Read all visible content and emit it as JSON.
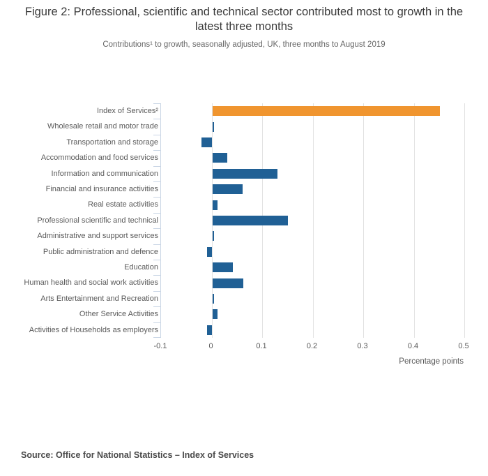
{
  "chart_data": {
    "type": "bar",
    "orientation": "horizontal",
    "title": "Figure 2: Professional, scientific and technical sector contributed most to growth in the latest three months",
    "subtitle": "Contributions¹ to growth, seasonally adjusted, UK, three months to August 2019",
    "categories": [
      "Index of Services²",
      "Wholesale retail and motor trade",
      "Transportation and storage",
      "Accommodation and food services",
      "Information and communication",
      "Financial and insurance activities",
      "Real estate activities",
      "Professional scientific and technical",
      "Administrative and support services",
      "Public administration and defence",
      "Education",
      "Human health and social work activities",
      "Arts Entertainment and Recreation",
      "Other Service Activities",
      "Activities of Households as employers"
    ],
    "values": [
      0.45,
      0.003,
      -0.021,
      0.03,
      0.129,
      0.06,
      0.011,
      0.15,
      0.003,
      -0.011,
      0.04,
      0.061,
      0.003,
      0.011,
      -0.011
    ],
    "highlight_index": 0,
    "xlabel": "Percentage points",
    "xlim": [
      -0.1,
      0.5
    ],
    "x_tick_values": [
      -0.1,
      0,
      0.1,
      0.2,
      0.3,
      0.4,
      0.5
    ],
    "x_tick_labels": [
      "-0.1",
      "0",
      "0.1",
      "0.2",
      "0.3",
      "0.4",
      "0.5"
    ],
    "grid": true,
    "legend": false,
    "colors": {
      "highlight": "#f0952f",
      "bar": "#206095",
      "gridline": "#e2e2e2",
      "category_axis": "#c9d5e5",
      "axis_text": "#595959"
    },
    "source": "Source: Office for National Statistics – Index of Services"
  }
}
